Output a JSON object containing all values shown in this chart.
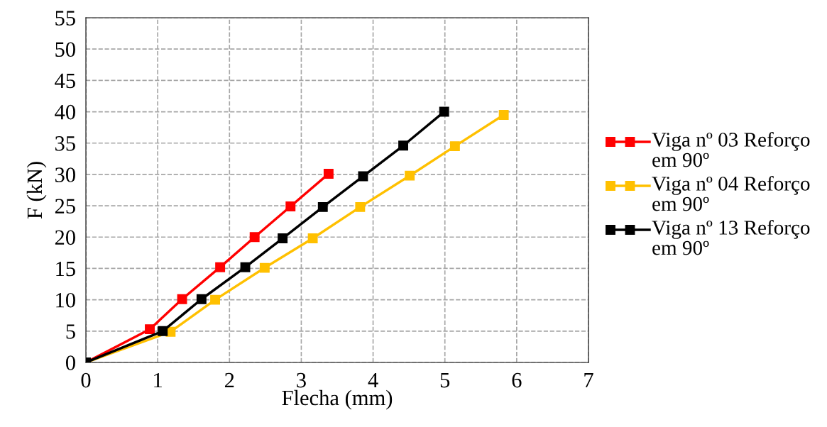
{
  "chart_data": {
    "type": "line",
    "xlabel": "Flecha (mm)",
    "ylabel": "F (kN)",
    "xlim": [
      0,
      7
    ],
    "xticks": [
      0,
      1,
      2,
      3,
      4,
      5,
      6,
      7
    ],
    "ylim": [
      0,
      55
    ],
    "yticks": [
      0,
      5,
      10,
      15,
      20,
      25,
      30,
      35,
      40,
      45,
      50,
      55
    ],
    "grid": true,
    "legend": "right",
    "marker": "square",
    "line_style": "solid",
    "series": [
      {
        "name": "Viga nº 03 Reforço em 90º",
        "color": "#ff0000",
        "x": [
          0,
          0.89,
          1.34,
          1.87,
          2.35,
          2.85,
          3.38
        ],
        "values": [
          0,
          5.3,
          10.1,
          15.2,
          20.0,
          24.9,
          30.1
        ]
      },
      {
        "name": "Viga nº 04 Reforço em 90º",
        "color": "#ffc000",
        "x": [
          0,
          1.18,
          1.8,
          2.49,
          3.16,
          3.82,
          4.51,
          5.14,
          5.82
        ],
        "values": [
          0,
          4.9,
          10.0,
          15.1,
          19.8,
          24.8,
          29.8,
          34.5,
          39.5
        ]
      },
      {
        "name": "Viga nº 13 Reforço em 90º",
        "color": "#000000",
        "x": [
          0,
          1.07,
          1.61,
          2.22,
          2.74,
          3.3,
          3.86,
          4.42,
          4.99
        ],
        "values": [
          0,
          5.0,
          10.1,
          15.2,
          19.8,
          24.8,
          29.7,
          34.6,
          40.0
        ]
      }
    ]
  }
}
